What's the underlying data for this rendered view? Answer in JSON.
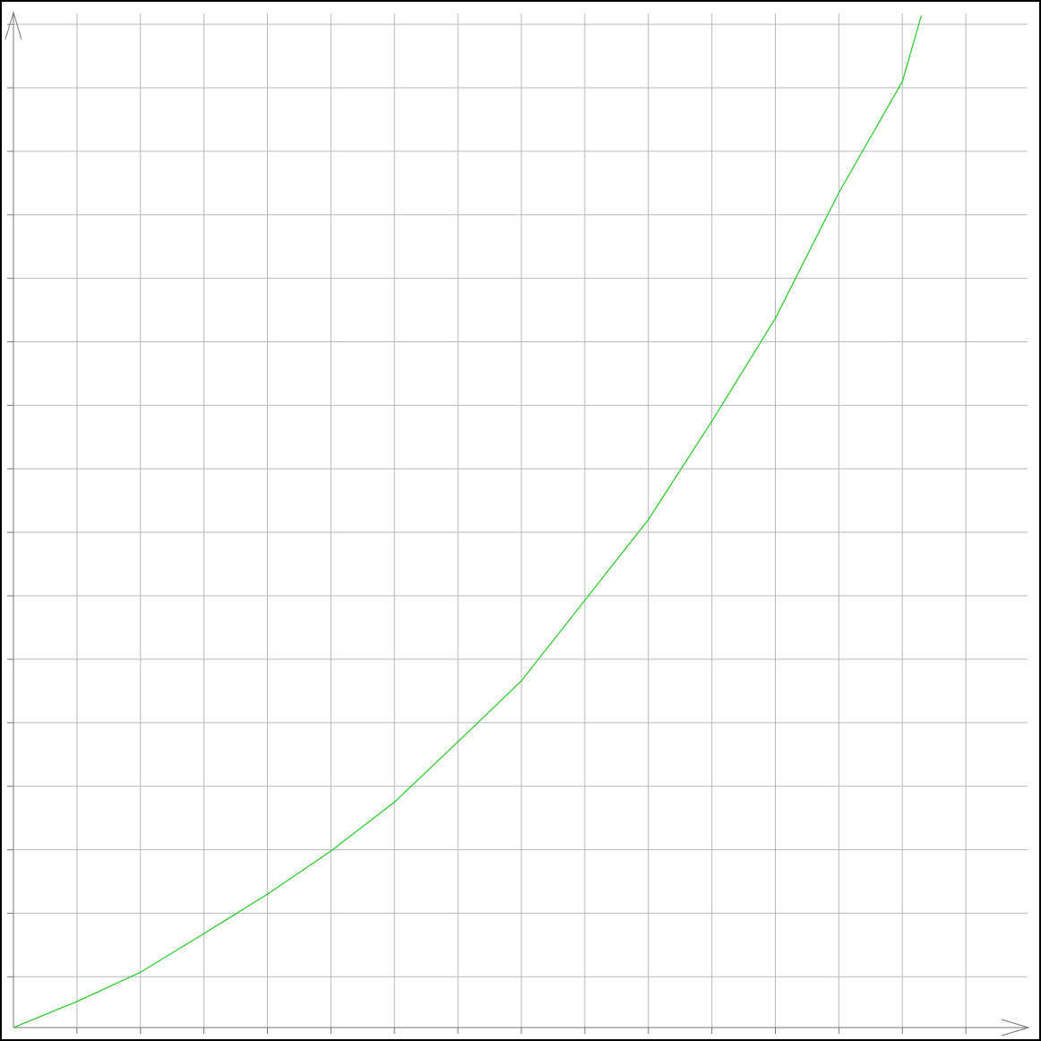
{
  "chart_data": {
    "type": "line",
    "x": [
      0,
      1,
      2,
      3,
      4,
      5,
      6,
      7,
      8,
      9,
      10,
      11,
      12,
      13,
      14,
      14.3
    ],
    "series": [
      {
        "color": "#22cc22",
        "values": [
          0,
          0.41,
          0.87,
          1.48,
          2.1,
          2.78,
          3.55,
          4.5,
          5.46,
          6.73,
          8.0,
          9.55,
          11.17,
          13.15,
          14.9,
          15.94
        ]
      }
    ],
    "xlim": [
      0,
      16
    ],
    "ylim": [
      0,
      16
    ],
    "xticks": [
      1,
      2,
      3,
      4,
      5,
      6,
      7,
      8,
      9,
      10,
      11,
      12,
      13,
      14,
      15
    ],
    "yticks": [
      0.8,
      1.8,
      2.8,
      3.8,
      4.8,
      5.8,
      6.8,
      7.8,
      8.8,
      9.8,
      10.8,
      11.8,
      12.8,
      13.8,
      14.8,
      15.8
    ],
    "grid": true
  }
}
